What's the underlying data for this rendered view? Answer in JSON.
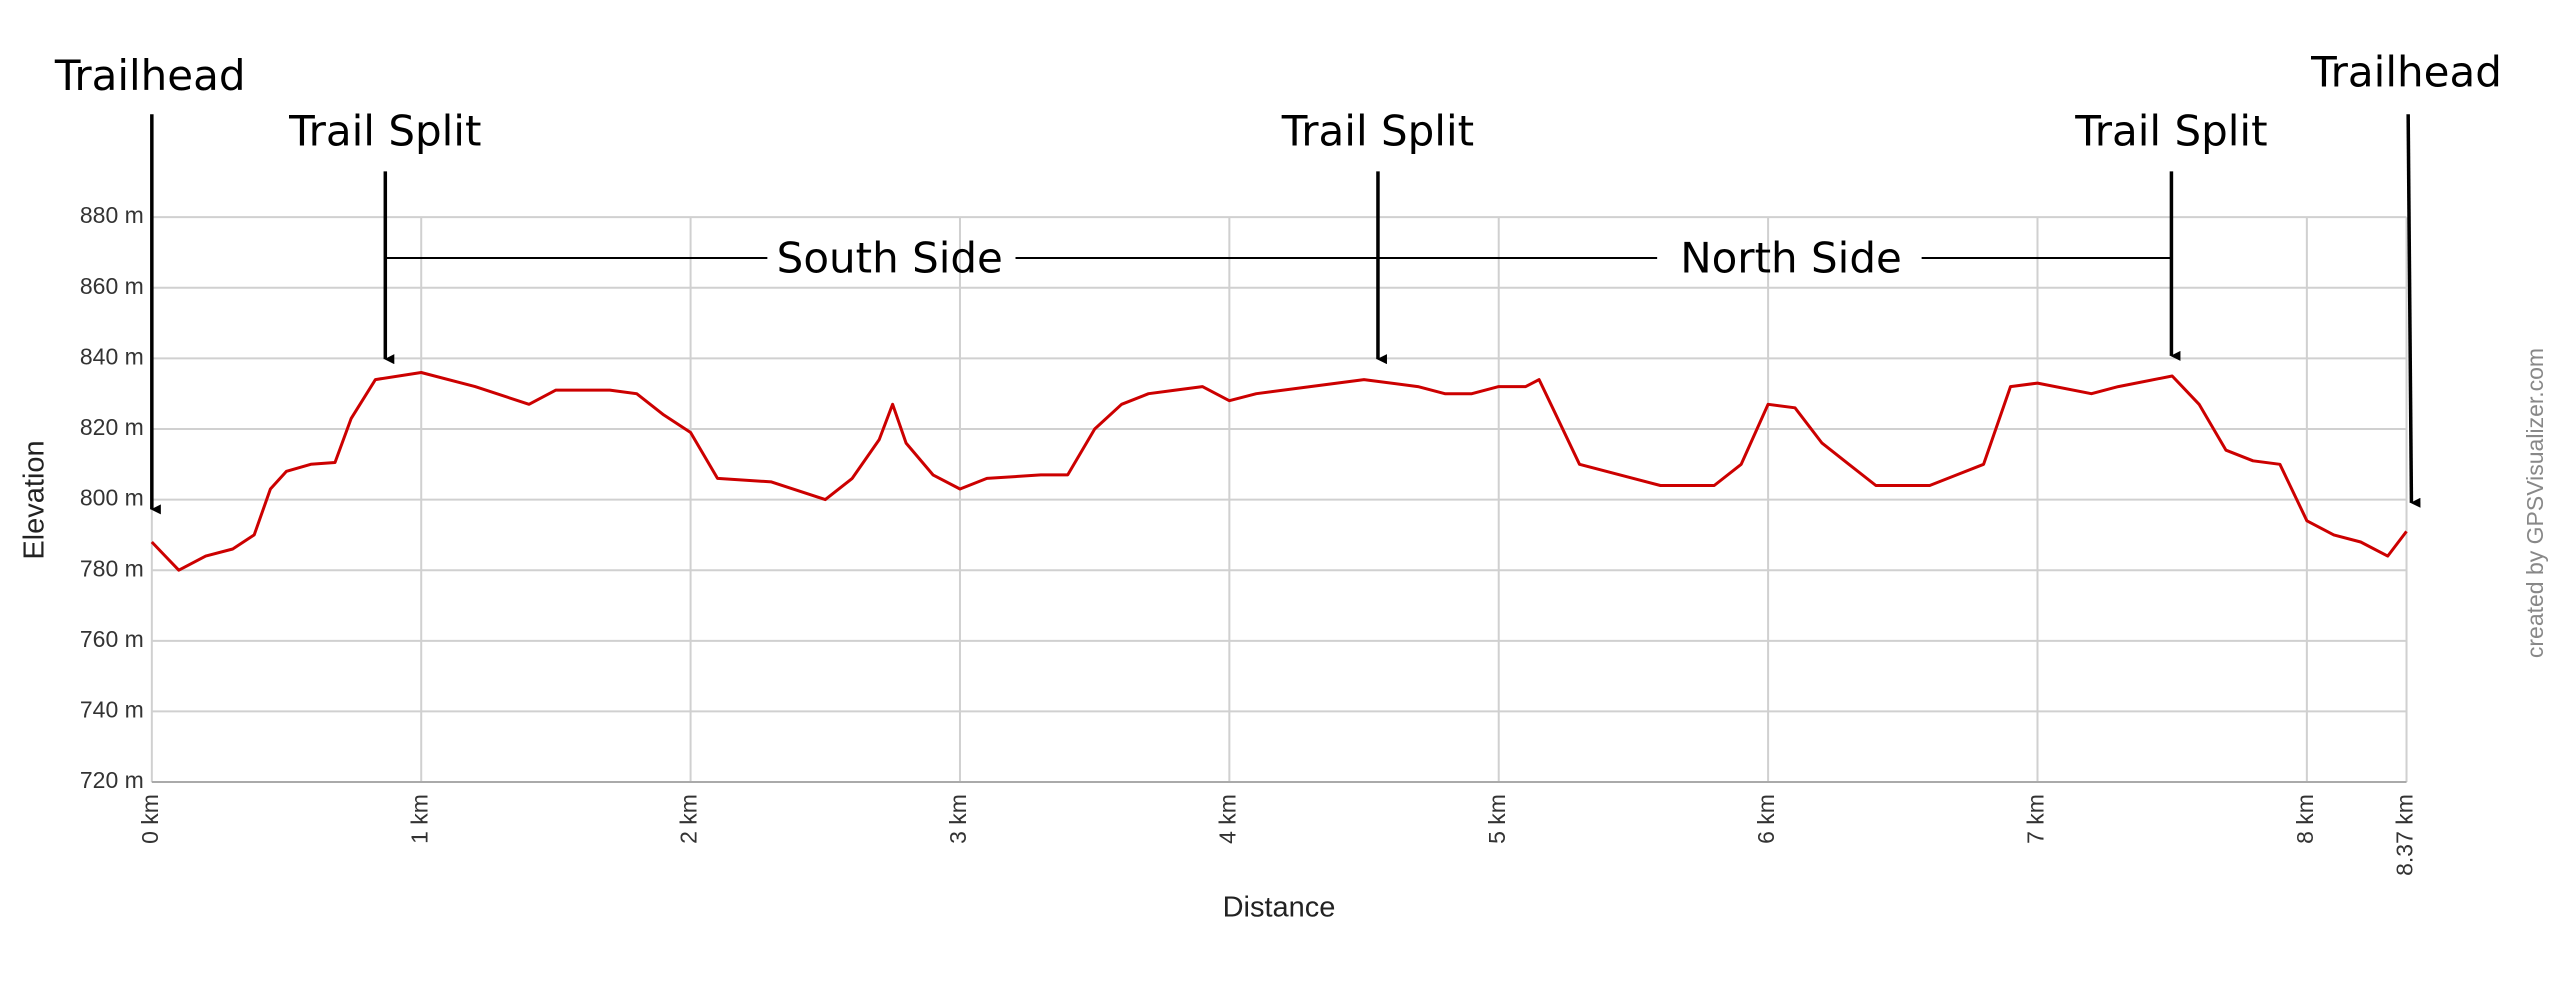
{
  "chart_data": {
    "type": "line",
    "xlabel": "Distance",
    "ylabel": "Elevation",
    "watermark": "created by GPSVisualizer.com",
    "annotations": [
      "Trailhead",
      "Trail Split",
      "South Side",
      "Trail Split",
      "North Side",
      "Trail Split",
      "Trailhead"
    ],
    "grid": true,
    "xlim": [
      0,
      8.37
    ],
    "xticks": [
      {
        "value": 0,
        "label": "0 km"
      },
      {
        "value": 1,
        "label": "1 km"
      },
      {
        "value": 2,
        "label": "2 km"
      },
      {
        "value": 3,
        "label": "3 km"
      },
      {
        "value": 4,
        "label": "4 km"
      },
      {
        "value": 5,
        "label": "5 km"
      },
      {
        "value": 6,
        "label": "6 km"
      },
      {
        "value": 7,
        "label": "7 km"
      },
      {
        "value": 8,
        "label": "8 km"
      },
      {
        "value": 8.37,
        "label": "8.37 km"
      }
    ],
    "ylim": [
      720,
      880
    ],
    "yticks": [
      {
        "value": 720,
        "label": "720 m"
      },
      {
        "value": 740,
        "label": "740 m"
      },
      {
        "value": 760,
        "label": "760 m"
      },
      {
        "value": 780,
        "label": "780 m"
      },
      {
        "value": 800,
        "label": "800 m"
      },
      {
        "value": 820,
        "label": "820 m"
      },
      {
        "value": 840,
        "label": "840 m"
      },
      {
        "value": 860,
        "label": "860 m"
      },
      {
        "value": 880,
        "label": "880 m"
      }
    ],
    "x": [
      0,
      0.05,
      0.1,
      0.2,
      0.3,
      0.38,
      0.44,
      0.5,
      0.59,
      0.68,
      0.74,
      0.83,
      1.0,
      1.2,
      1.4,
      1.5,
      1.7,
      1.8,
      1.9,
      2.0,
      2.1,
      2.3,
      2.5,
      2.6,
      2.7,
      2.75,
      2.8,
      2.9,
      3.0,
      3.1,
      3.3,
      3.4,
      3.5,
      3.6,
      3.7,
      3.8,
      3.9,
      4.0,
      4.1,
      4.3,
      4.5,
      4.7,
      4.8,
      4.9,
      5.0,
      5.1,
      5.15,
      5.2,
      5.3,
      5.5,
      5.6,
      5.8,
      5.9,
      6.0,
      6.1,
      6.2,
      6.3,
      6.4,
      6.6,
      6.7,
      6.8,
      6.9,
      7.0,
      7.2,
      7.3,
      7.5,
      7.6,
      7.7,
      7.8,
      7.9,
      8.0,
      8.1,
      8.2,
      8.3,
      8.37
    ],
    "series": [
      {
        "color": "#cc0000",
        "values": [
          788,
          784,
          780,
          784,
          786,
          790,
          803,
          808,
          810,
          810.5,
          823,
          834,
          836,
          832,
          827,
          831,
          831,
          830,
          824,
          819,
          806,
          805,
          800,
          806,
          817,
          827,
          816,
          807,
          803,
          806,
          807,
          807,
          820,
          827,
          830,
          831,
          832,
          828,
          830,
          832,
          834,
          832,
          830,
          830,
          832,
          832,
          834,
          826,
          810,
          806,
          804,
          804,
          810,
          827,
          826,
          816,
          810,
          804,
          804,
          807,
          810,
          832,
          833,
          830,
          832,
          835,
          827,
          814,
          811,
          810,
          794,
          790,
          788,
          784,
          791
        ]
      }
    ]
  }
}
